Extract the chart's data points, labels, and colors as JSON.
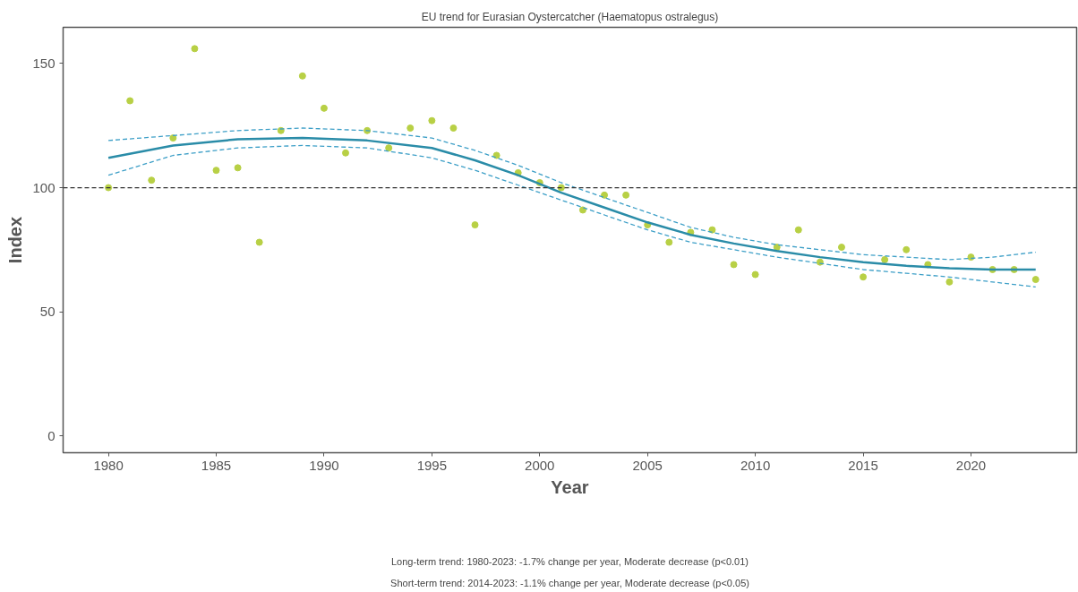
{
  "chart_data": {
    "type": "scatter",
    "title": "EU trend for Eurasian Oystercatcher (Haematopus ostralegus)",
    "xlabel": "Year",
    "ylabel": "Index",
    "xlim": [
      1977.9,
      2024.9
    ],
    "ylim": [
      -6.8,
      164.6
    ],
    "xticks": [
      1980,
      1985,
      1990,
      1995,
      2000,
      2005,
      2010,
      2015,
      2020
    ],
    "yticks": [
      0,
      50,
      100,
      150
    ],
    "grid": false,
    "x": [
      1980,
      1981,
      1982,
      1983,
      1984,
      1985,
      1986,
      1987,
      1988,
      1989,
      1990,
      1991,
      1992,
      1993,
      1994,
      1995,
      1996,
      1997,
      1998,
      1999,
      2000,
      2001,
      2002,
      2003,
      2004,
      2005,
      2006,
      2007,
      2008,
      2009,
      2010,
      2011,
      2012,
      2013,
      2014,
      2015,
      2016,
      2017,
      2018,
      2019,
      2020,
      2021,
      2022,
      2023
    ],
    "series": [
      {
        "marker": "circle",
        "color": "#b8d045",
        "values": [
          100,
          135,
          103,
          120,
          156,
          107,
          108,
          78,
          123,
          145,
          132,
          114,
          123,
          116,
          124,
          127,
          124,
          85,
          113,
          106,
          102,
          100,
          91,
          97,
          97,
          85,
          78,
          82,
          83,
          69,
          65,
          76,
          83,
          70,
          76,
          64,
          71,
          75,
          69,
          62,
          72,
          67,
          67,
          63
        ]
      },
      {
        "type": "line",
        "color": "#2a8ca8",
        "line_style": "solid",
        "x": [
          1980,
          1983,
          1986,
          1989,
          1992,
          1995,
          1997,
          1999,
          2001,
          2003,
          2005,
          2007,
          2009,
          2011,
          2013,
          2015,
          2017,
          2019,
          2021,
          2023
        ],
        "values": [
          112,
          117,
          119.5,
          120,
          119,
          116,
          111,
          105,
          98,
          92,
          86,
          81,
          77.5,
          74.5,
          72,
          70,
          68.5,
          67.5,
          67,
          67
        ]
      },
      {
        "type": "line",
        "color": "#3d9fc7",
        "line_style": "dashed",
        "x": [
          1980,
          1983,
          1986,
          1989,
          1992,
          1995,
          1997,
          1999,
          2001,
          2003,
          2005,
          2007,
          2009,
          2011,
          2013,
          2015,
          2017,
          2019,
          2021,
          2023
        ],
        "values": [
          119,
          121,
          123,
          124,
          123,
          120,
          115,
          109,
          102,
          96,
          90,
          84,
          80,
          77,
          75,
          73,
          72,
          71,
          72,
          74
        ]
      },
      {
        "type": "line",
        "color": "#3d9fc7",
        "line_style": "dashed",
        "x": [
          1980,
          1983,
          1986,
          1989,
          1992,
          1995,
          1997,
          1999,
          2001,
          2003,
          2005,
          2007,
          2009,
          2011,
          2013,
          2015,
          2017,
          2019,
          2021,
          2023
        ],
        "values": [
          105,
          113,
          116,
          117,
          116,
          112,
          107,
          101,
          95,
          89,
          83,
          78,
          75,
          72,
          69.5,
          67,
          65.5,
          64,
          62,
          60
        ]
      }
    ],
    "ref_lines": [
      {
        "axis": "y",
        "value": 100,
        "color": "#333333",
        "line_style": "dashed"
      }
    ],
    "annotations": [
      "Long-term trend: 1980-2023: -1.7% change per year, Moderate decrease (p<0.01)",
      "Short-term trend: 2014-2023: -1.1% change per year, Moderate decrease (p<0.05)"
    ]
  }
}
